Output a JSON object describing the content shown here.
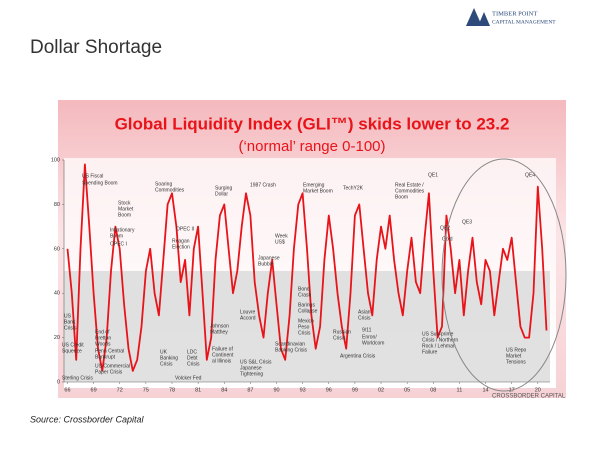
{
  "slide": {
    "title": "Dollar Shortage",
    "source": "Source: Crossborder Capital",
    "logo": [
      "TIMBER POINT",
      "CAPITAL MANAGEMENT"
    ]
  },
  "chart_data": {
    "type": "line",
    "title": "Global Liquidity Index (GLI™) skids lower to 23.2",
    "subtitle": "(‘normal’ range 0-100)",
    "watermark": "CROSSBORDER CAPITAL",
    "x": [
      1966,
      1966.5,
      1967,
      1967.5,
      1968,
      1968.5,
      1969,
      1969.5,
      1970,
      1970.5,
      1971,
      1971.5,
      1972,
      1972.5,
      1973,
      1973.5,
      1974,
      1974.5,
      1975,
      1975.5,
      1976,
      1976.5,
      1977,
      1977.5,
      1978,
      1978.5,
      1979,
      1979.5,
      1980,
      1980.5,
      1981,
      1981.5,
      1982,
      1982.5,
      1983,
      1983.5,
      1984,
      1984.5,
      1985,
      1985.5,
      1986,
      1986.5,
      1987,
      1987.5,
      1988,
      1988.5,
      1989,
      1989.5,
      1990,
      1990.5,
      1991,
      1991.5,
      1992,
      1992.5,
      1993,
      1993.5,
      1994,
      1994.5,
      1995,
      1995.5,
      1996,
      1996.5,
      1997,
      1997.5,
      1998,
      1998.5,
      1999,
      1999.5,
      2000,
      2000.5,
      2001,
      2001.5,
      2002,
      2002.5,
      2003,
      2003.5,
      2004,
      2004.5,
      2005,
      2005.5,
      2006,
      2006.5,
      2007,
      2007.5,
      2008,
      2008.5,
      2009,
      2009.5,
      2010,
      2010.5,
      2011,
      2011.5,
      2012,
      2012.5,
      2013,
      2013.5,
      2014,
      2014.5,
      2015,
      2015.5,
      2016,
      2016.5,
      2017,
      2017.5,
      2018,
      2018.5,
      2019,
      2019.5,
      2020,
      2020.5,
      2021
    ],
    "series": [
      {
        "name": "GLI",
        "color": "#e8141a",
        "values": [
          60,
          40,
          10,
          60,
          98,
          70,
          40,
          15,
          5,
          20,
          50,
          70,
          60,
          35,
          15,
          5,
          10,
          25,
          50,
          60,
          40,
          30,
          55,
          80,
          85,
          70,
          45,
          55,
          30,
          60,
          70,
          40,
          10,
          20,
          55,
          75,
          80,
          60,
          40,
          50,
          70,
          85,
          75,
          45,
          30,
          20,
          40,
          55,
          35,
          15,
          10,
          30,
          60,
          80,
          85,
          60,
          30,
          15,
          25,
          55,
          75,
          60,
          40,
          25,
          15,
          40,
          75,
          80,
          60,
          40,
          30,
          55,
          70,
          60,
          75,
          55,
          40,
          30,
          50,
          65,
          45,
          40,
          65,
          85,
          50,
          20,
          25,
          75,
          60,
          40,
          55,
          30,
          50,
          65,
          45,
          35,
          55,
          50,
          30,
          45,
          60,
          55,
          65,
          45,
          25,
          20,
          20,
          40,
          88,
          60,
          23.2
        ]
      }
    ],
    "band": [
      0,
      50
    ],
    "xlim": [
      1965.6,
      2021.4
    ],
    "ylim": [
      0,
      100
    ],
    "yticks": [
      0,
      20,
      40,
      60,
      80,
      100
    ],
    "xticks": [
      {
        "value": 1966,
        "label": "66"
      },
      {
        "value": 1969,
        "label": "69"
      },
      {
        "value": 1972,
        "label": "72"
      },
      {
        "value": 1975,
        "label": "75"
      },
      {
        "value": 1978,
        "label": "78"
      },
      {
        "value": 1981,
        "label": "81"
      },
      {
        "value": 1984,
        "label": "84"
      },
      {
        "value": 1987,
        "label": "87"
      },
      {
        "value": 1990,
        "label": "90"
      },
      {
        "value": 1993,
        "label": "93"
      },
      {
        "value": 1996,
        "label": "96"
      },
      {
        "value": 1999,
        "label": "99"
      },
      {
        "value": 2002,
        "label": "02"
      },
      {
        "value": 2005,
        "label": "05"
      },
      {
        "value": 2008,
        "label": "08"
      },
      {
        "value": 2011,
        "label": "11"
      },
      {
        "value": 2014,
        "label": "14"
      },
      {
        "value": 2017,
        "label": "17"
      },
      {
        "value": 2020,
        "label": "20"
      }
    ],
    "annotations": [
      "US Fiscal",
      "Spending Boom",
      "Stock",
      "Market",
      "Boom",
      "Inflationary",
      "Boom",
      "OPEC I",
      "Soaring",
      "Commodities",
      "OPEC II",
      "Reagan",
      "Election",
      "Surging",
      "Dollar",
      "1987 Crash",
      "Week",
      "US$",
      "Japanese",
      "Bubble",
      "Emerging",
      "Market Boom",
      "TechY2K",
      "Real Estate /",
      "Commodities",
      "Boom",
      "QE1",
      "QE2",
      "Gold",
      "QE3",
      "QE4",
      "Louvre",
      "Accord",
      "Bond",
      "Crash",
      "Barings",
      "Collapse",
      "Mexico",
      "Peso",
      "Crisis",
      "Asian",
      "Crisis",
      "Russian",
      "Crisis",
      "9/11",
      "Enron/",
      "Worldcom",
      "Argentina Crisis",
      "US",
      "Bank",
      "Crisis",
      "End of",
      "Bretton",
      "Woods",
      "Penn Central",
      "Bankrupt",
      "US Commercial",
      "Paper Crisis",
      "US Credit",
      "Squeeze",
      "Sterling Crisis",
      "UK",
      "Banking",
      "Crisis",
      "LDC",
      "Debt",
      "Crisis",
      "Volcker Fed",
      "Johnson",
      "Matthey",
      "Failure of",
      "Continent",
      "al Illinois",
      "Scandinavian",
      "Banking Crisis",
      "US S&L Crisis",
      "Japanese",
      "Tightening",
      "US Sub-prime",
      "Crisis / Northern",
      "Rock / Lehman",
      "Failure",
      "US Repo",
      "Market",
      "Tensions"
    ]
  }
}
